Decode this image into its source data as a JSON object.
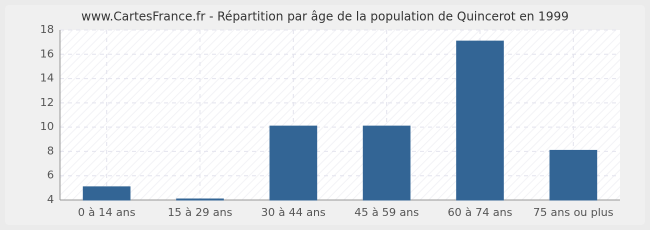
{
  "chart_data": {
    "type": "bar",
    "title": "www.CartesFrance.fr - Répartition par âge de la population de Quincerot en 1999",
    "categories": [
      "0 à 14 ans",
      "15 à 29 ans",
      "30 à 44 ans",
      "45 à 59 ans",
      "60 à 74 ans",
      "75 ans ou plus"
    ],
    "values": [
      5,
      4,
      10,
      10,
      17,
      8
    ],
    "color": "#336595",
    "ylim": [
      4,
      18
    ],
    "yticks": [
      4,
      6,
      8,
      10,
      12,
      14,
      16,
      18
    ],
    "grid": true
  }
}
